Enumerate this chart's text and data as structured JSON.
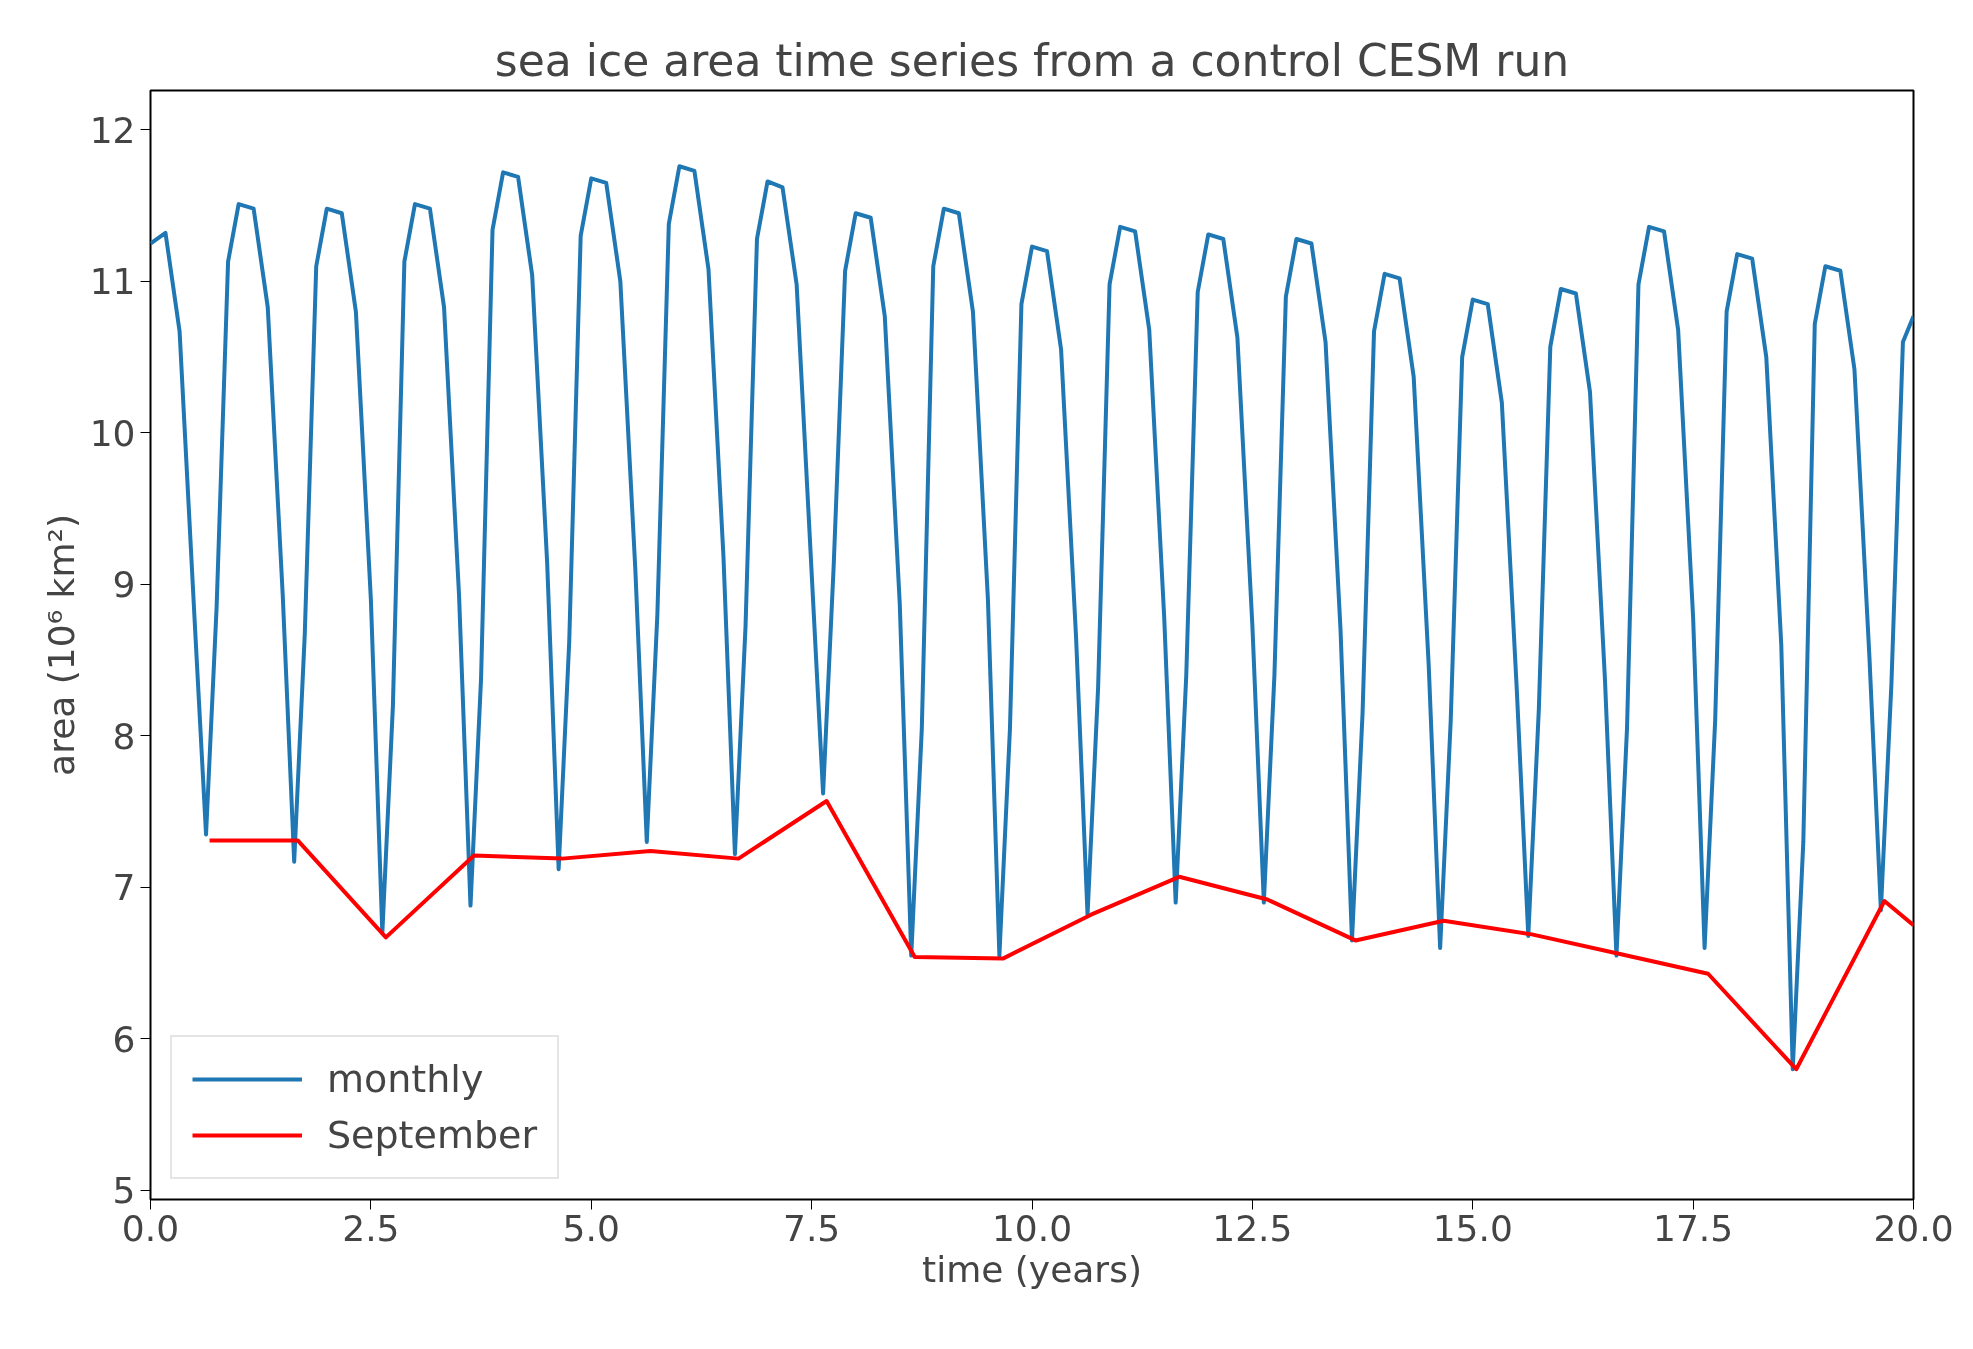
{
  "chart_data": {
    "type": "line",
    "title": "sea ice area time series from a control CESM run",
    "xlabel": "time (years)",
    "ylabel": "area (10⁶ km²)",
    "xlim": [
      0,
      20
    ],
    "ylim": [
      4.94,
      12.26
    ],
    "xticks": [
      {
        "value": 0,
        "label": "0.0"
      },
      {
        "value": 2.5,
        "label": "2.5"
      },
      {
        "value": 5,
        "label": "5.0"
      },
      {
        "value": 7.5,
        "label": "7.5"
      },
      {
        "value": 10,
        "label": "10.0"
      },
      {
        "value": 12.5,
        "label": "12.5"
      },
      {
        "value": 15,
        "label": "15.0"
      },
      {
        "value": 17.5,
        "label": "17.5"
      },
      {
        "value": 20,
        "label": "20.0"
      }
    ],
    "yticks": [
      5,
      6,
      7,
      8,
      9,
      10,
      11,
      12
    ],
    "grid": false,
    "legend": "bottom left",
    "line_style": "solid",
    "marker": "none",
    "series": [
      {
        "name": "monthly",
        "color": "#1f77b4",
        "x": [
          0,
          0.17,
          0.33,
          0.5,
          0.63,
          0.75,
          0.88,
          1,
          1.17,
          1.33,
          1.5,
          1.63,
          1.75,
          1.88,
          2,
          2.17,
          2.33,
          2.5,
          2.63,
          2.75,
          2.88,
          3,
          3.17,
          3.33,
          3.5,
          3.63,
          3.75,
          3.88,
          4,
          4.17,
          4.33,
          4.5,
          4.63,
          4.75,
          4.88,
          5,
          5.17,
          5.33,
          5.5,
          5.63,
          5.75,
          5.88,
          6,
          6.17,
          6.33,
          6.5,
          6.63,
          6.75,
          6.88,
          7,
          7.17,
          7.33,
          7.5,
          7.63,
          7.75,
          7.88,
          8,
          8.17,
          8.33,
          8.5,
          8.63,
          8.75,
          8.88,
          9,
          9.17,
          9.33,
          9.5,
          9.63,
          9.75,
          9.88,
          10,
          10.17,
          10.33,
          10.5,
          10.63,
          10.75,
          10.88,
          11,
          11.17,
          11.33,
          11.5,
          11.63,
          11.75,
          11.88,
          12,
          12.17,
          12.33,
          12.5,
          12.63,
          12.75,
          12.88,
          13,
          13.17,
          13.33,
          13.5,
          13.63,
          13.75,
          13.88,
          14,
          14.17,
          14.33,
          14.5,
          14.63,
          14.75,
          14.88,
          15,
          15.17,
          15.33,
          15.5,
          15.63,
          15.75,
          15.88,
          16,
          16.17,
          16.33,
          16.5,
          16.63,
          16.75,
          16.88,
          17,
          17.17,
          17.33,
          17.5,
          17.63,
          17.75,
          17.88,
          18,
          18.17,
          18.33,
          18.5,
          18.63,
          18.75,
          18.88,
          19,
          19.17,
          19.33,
          19.5,
          19.63,
          19.75,
          19.88,
          20
        ],
        "values": [
          11.25,
          11.32,
          10.67,
          8.77,
          7.35,
          8.85,
          11.13,
          11.51,
          11.48,
          10.83,
          8.93,
          7.17,
          8.67,
          11.1,
          11.48,
          11.45,
          10.8,
          8.9,
          6.7,
          8.2,
          11.13,
          11.51,
          11.48,
          10.83,
          8.93,
          6.88,
          8.38,
          11.34,
          11.72,
          11.69,
          11.04,
          9.14,
          7.12,
          8.62,
          11.3,
          11.68,
          11.65,
          11.0,
          9.1,
          7.3,
          8.8,
          11.38,
          11.76,
          11.73,
          11.08,
          9.18,
          7.22,
          8.72,
          11.28,
          11.66,
          11.62,
          10.98,
          9.08,
          7.62,
          9.12,
          11.07,
          11.45,
          11.42,
          10.77,
          8.87,
          6.55,
          8.05,
          11.1,
          11.48,
          11.45,
          10.8,
          8.9,
          6.55,
          8.05,
          10.85,
          11.23,
          11.2,
          10.55,
          8.65,
          6.82,
          8.32,
          10.98,
          11.36,
          11.33,
          10.68,
          8.78,
          6.9,
          8.4,
          10.93,
          11.31,
          11.28,
          10.63,
          8.73,
          6.9,
          8.4,
          10.9,
          11.28,
          11.25,
          10.6,
          8.7,
          6.65,
          8.15,
          10.67,
          11.05,
          11.02,
          10.37,
          8.47,
          6.6,
          8.1,
          10.5,
          10.88,
          10.85,
          10.2,
          8.3,
          6.68,
          8.18,
          10.57,
          10.95,
          10.92,
          10.27,
          8.37,
          6.55,
          8.05,
          10.98,
          11.36,
          11.33,
          10.68,
          8.78,
          6.6,
          8.1,
          10.8,
          11.18,
          11.15,
          10.5,
          8.6,
          5.8,
          7.3,
          10.72,
          11.1,
          11.07,
          10.42,
          8.52,
          6.85,
          8.35,
          10.6,
          10.77
        ]
      },
      {
        "name": "September",
        "color": "#ff0000",
        "x": [
          0.67,
          1.67,
          2.67,
          3.67,
          4.67,
          5.67,
          6.67,
          7.67,
          8.67,
          9.67,
          10.67,
          11.67,
          12.67,
          13.67,
          14.67,
          15.67,
          16.67,
          17.67,
          18.67,
          19.67,
          20
        ],
        "values": [
          7.31,
          7.31,
          6.67,
          7.21,
          7.19,
          7.24,
          7.19,
          7.57,
          6.54,
          6.53,
          6.82,
          7.07,
          6.92,
          6.65,
          6.78,
          6.69,
          6.56,
          6.43,
          5.8,
          6.91,
          6.75
        ]
      }
    ]
  }
}
